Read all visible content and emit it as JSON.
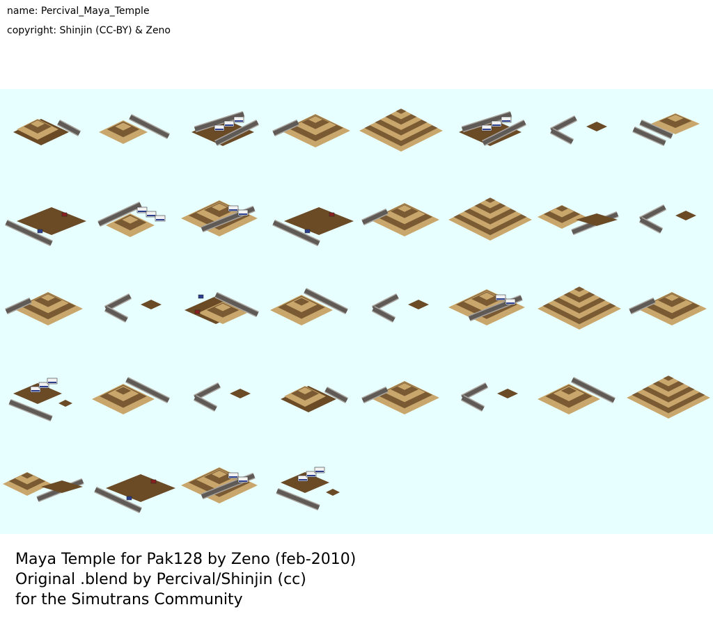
{
  "meta": {
    "name_label": "name: Percival_Maya_Temple",
    "copyright_label": "copyright: Shinjin (CC-BY) & Zeno"
  },
  "sheet": {
    "background": "#e7ffff",
    "rows": 5,
    "columns": 8,
    "tiles": [
      [
        "temple-small",
        "road-straight",
        "road-bus-stop",
        "pyramid-slope",
        "pyramid-full",
        "road-bus-stop",
        "road-corner",
        "road-pyramid-edge"
      ],
      [
        "road-cars",
        "temple-buses",
        "pyramid-buses",
        "road-cars",
        "pyramid-slope",
        "pyramid-full",
        "pyramid-edge-road",
        "road-corner"
      ],
      [
        "pyramid-slope",
        "road-corner",
        "temple-cars",
        "pyramid-road",
        "road-corner",
        "pyramid-buses",
        "pyramid-full",
        "pyramid-slope"
      ],
      [
        "road-buses",
        "pyramid-road",
        "road-corner",
        "temple-small",
        "pyramid-slope",
        "road-corner",
        "pyramid-road",
        "pyramid-full"
      ],
      [
        "pyramid-edge-road",
        "road-cars",
        "pyramid-buses",
        "road-buses",
        "",
        "",
        "",
        ""
      ]
    ]
  },
  "colors": {
    "sand": "#c9a66b",
    "stone_dark": "#7a5a33",
    "dirt": "#6b4a26",
    "road": "#5f5a55",
    "road_edge": "#a9a49e"
  },
  "credits": {
    "line1": "Maya Temple for Pak128 by Zeno (feb-2010)",
    "line2": "Original .blend by Percival/Shinjin (cc)",
    "line3": "for the Simutrans Community"
  }
}
